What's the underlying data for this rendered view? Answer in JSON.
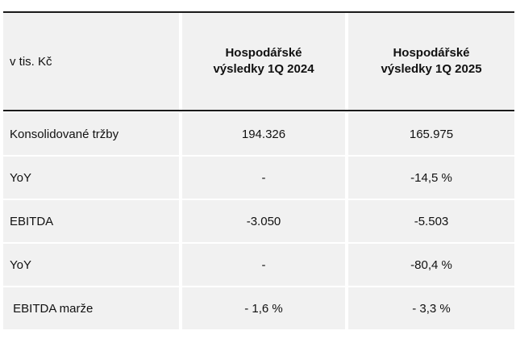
{
  "table": {
    "unit_label": "v tis. Kč",
    "columns": [
      {
        "line1": "Hospodářské",
        "line2": "výsledky 1Q 2024"
      },
      {
        "line1": "Hospodářské",
        "line2": "výsledky 1Q 2025"
      }
    ],
    "rows": [
      {
        "label": "Konsolidované tržby",
        "v2024": "194.326",
        "v2025": "165.975"
      },
      {
        "label": "YoY",
        "v2024": "-",
        "v2025": "-14,5 %"
      },
      {
        "label": "EBITDA",
        "v2024": "-3.050",
        "v2025": "-5.503"
      },
      {
        "label": "YoY",
        "v2024": "-",
        "v2025": "-80,4 %"
      },
      {
        "label": " EBITDA marže",
        "v2024": "- 1,6 %",
        "v2025": "- 3,3 %"
      }
    ]
  }
}
